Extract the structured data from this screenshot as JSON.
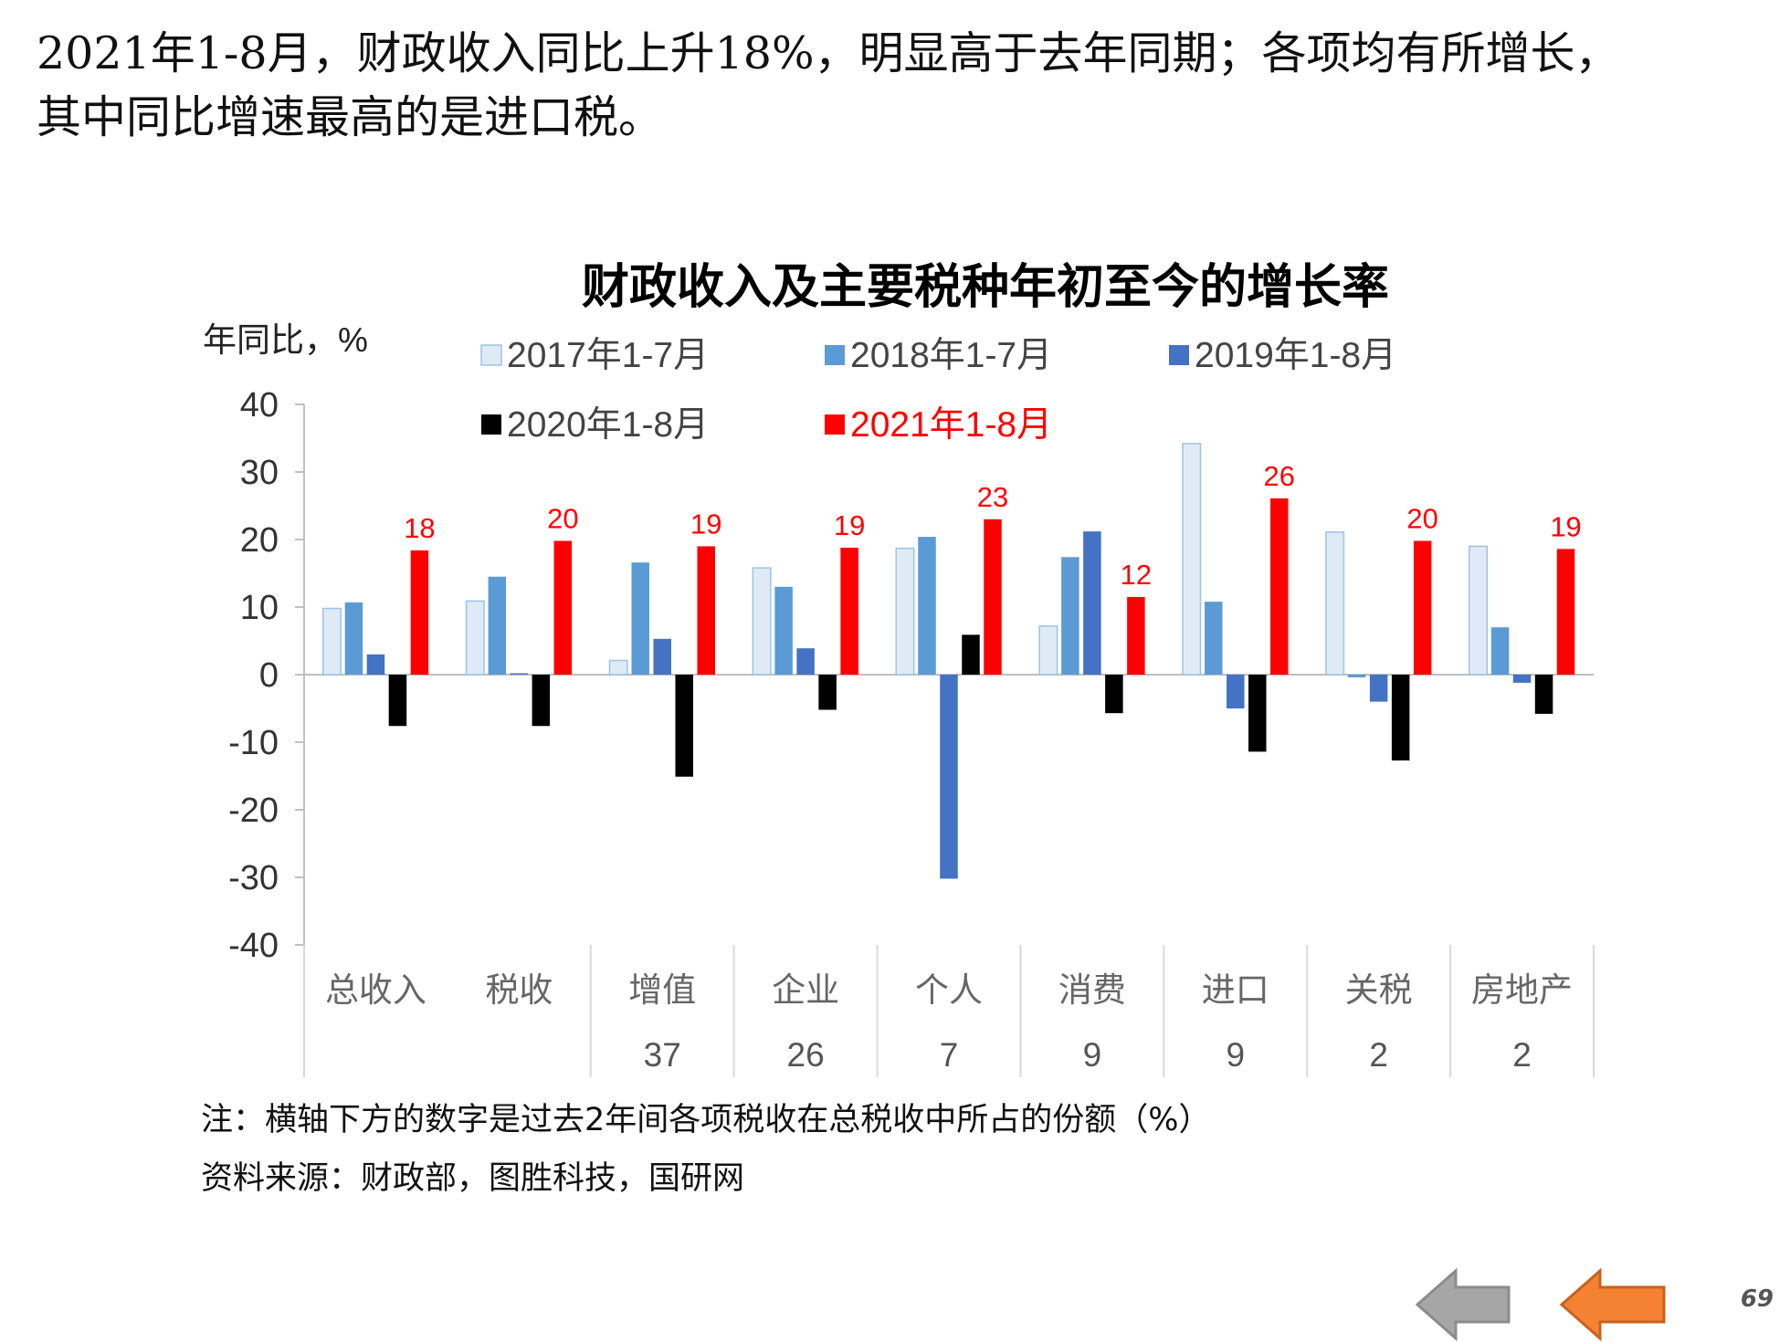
{
  "headline": {
    "line1": "2021年1-8月，财政收入同比上升18%，明显高于去年同期；各项均有所增长，",
    "line2": "其中同比增速最高的是进口税。"
  },
  "chart_data": {
    "type": "bar",
    "title": "财政收入及主要税种年初至今的增长率",
    "ylabel": "年同比，%",
    "ylim": [
      -40,
      40
    ],
    "yticks": [
      40,
      30,
      20,
      10,
      0,
      -10,
      -20,
      -30,
      -40
    ],
    "grid": false,
    "legend_position": "top",
    "categories": [
      "总收入",
      "税收",
      "增值",
      "企业",
      "个人",
      "消费",
      "进口",
      "关税",
      "房地产"
    ],
    "shares": [
      "",
      "",
      "37",
      "26",
      "7",
      "9",
      "9",
      "2",
      "2"
    ],
    "series": [
      {
        "name": "2017年1-7月",
        "color": "#deebf7",
        "stroke": "#9dc3e6",
        "values": [
          9.8,
          10.9,
          2.1,
          15.8,
          18.7,
          7.2,
          34.2,
          21.1,
          19.0
        ]
      },
      {
        "name": "2018年1-7月",
        "color": "#5b9bd5",
        "values": [
          10.7,
          14.5,
          16.6,
          13.0,
          20.4,
          17.4,
          10.8,
          -0.4,
          7.0
        ]
      },
      {
        "name": "2019年1-8月",
        "color": "#4472c4",
        "values": [
          3.0,
          0.2,
          5.3,
          3.9,
          -30.2,
          21.2,
          -5.0,
          -4.0,
          -1.2
        ]
      },
      {
        "name": "2020年1-8月",
        "color": "#000000",
        "values": [
          -7.6,
          -7.6,
          -15.1,
          -5.2,
          5.9,
          -5.7,
          -11.4,
          -12.7,
          -5.8
        ]
      },
      {
        "name": "2021年1-8月",
        "color": "#ff0000",
        "labelColor": "#ff0000",
        "values": [
          18.4,
          19.8,
          19.0,
          18.8,
          23.0,
          11.5,
          26.1,
          19.8,
          18.6
        ],
        "dataLabels": [
          "18",
          "20",
          "19",
          "19",
          "23",
          "12",
          "26",
          "20",
          "19"
        ]
      }
    ]
  },
  "notes": {
    "note": "注：横轴下方的数字是过去2年间各项税收在总税收中所占的份额（%）",
    "source": "资料来源：财政部，图胜科技，国研网"
  },
  "nav": {
    "back_icon": "gray-left-arrow-icon",
    "prev_icon": "orange-left-arrow-icon",
    "gray": "#a6a6a6",
    "orange": "#f58233"
  },
  "page_number": "69"
}
